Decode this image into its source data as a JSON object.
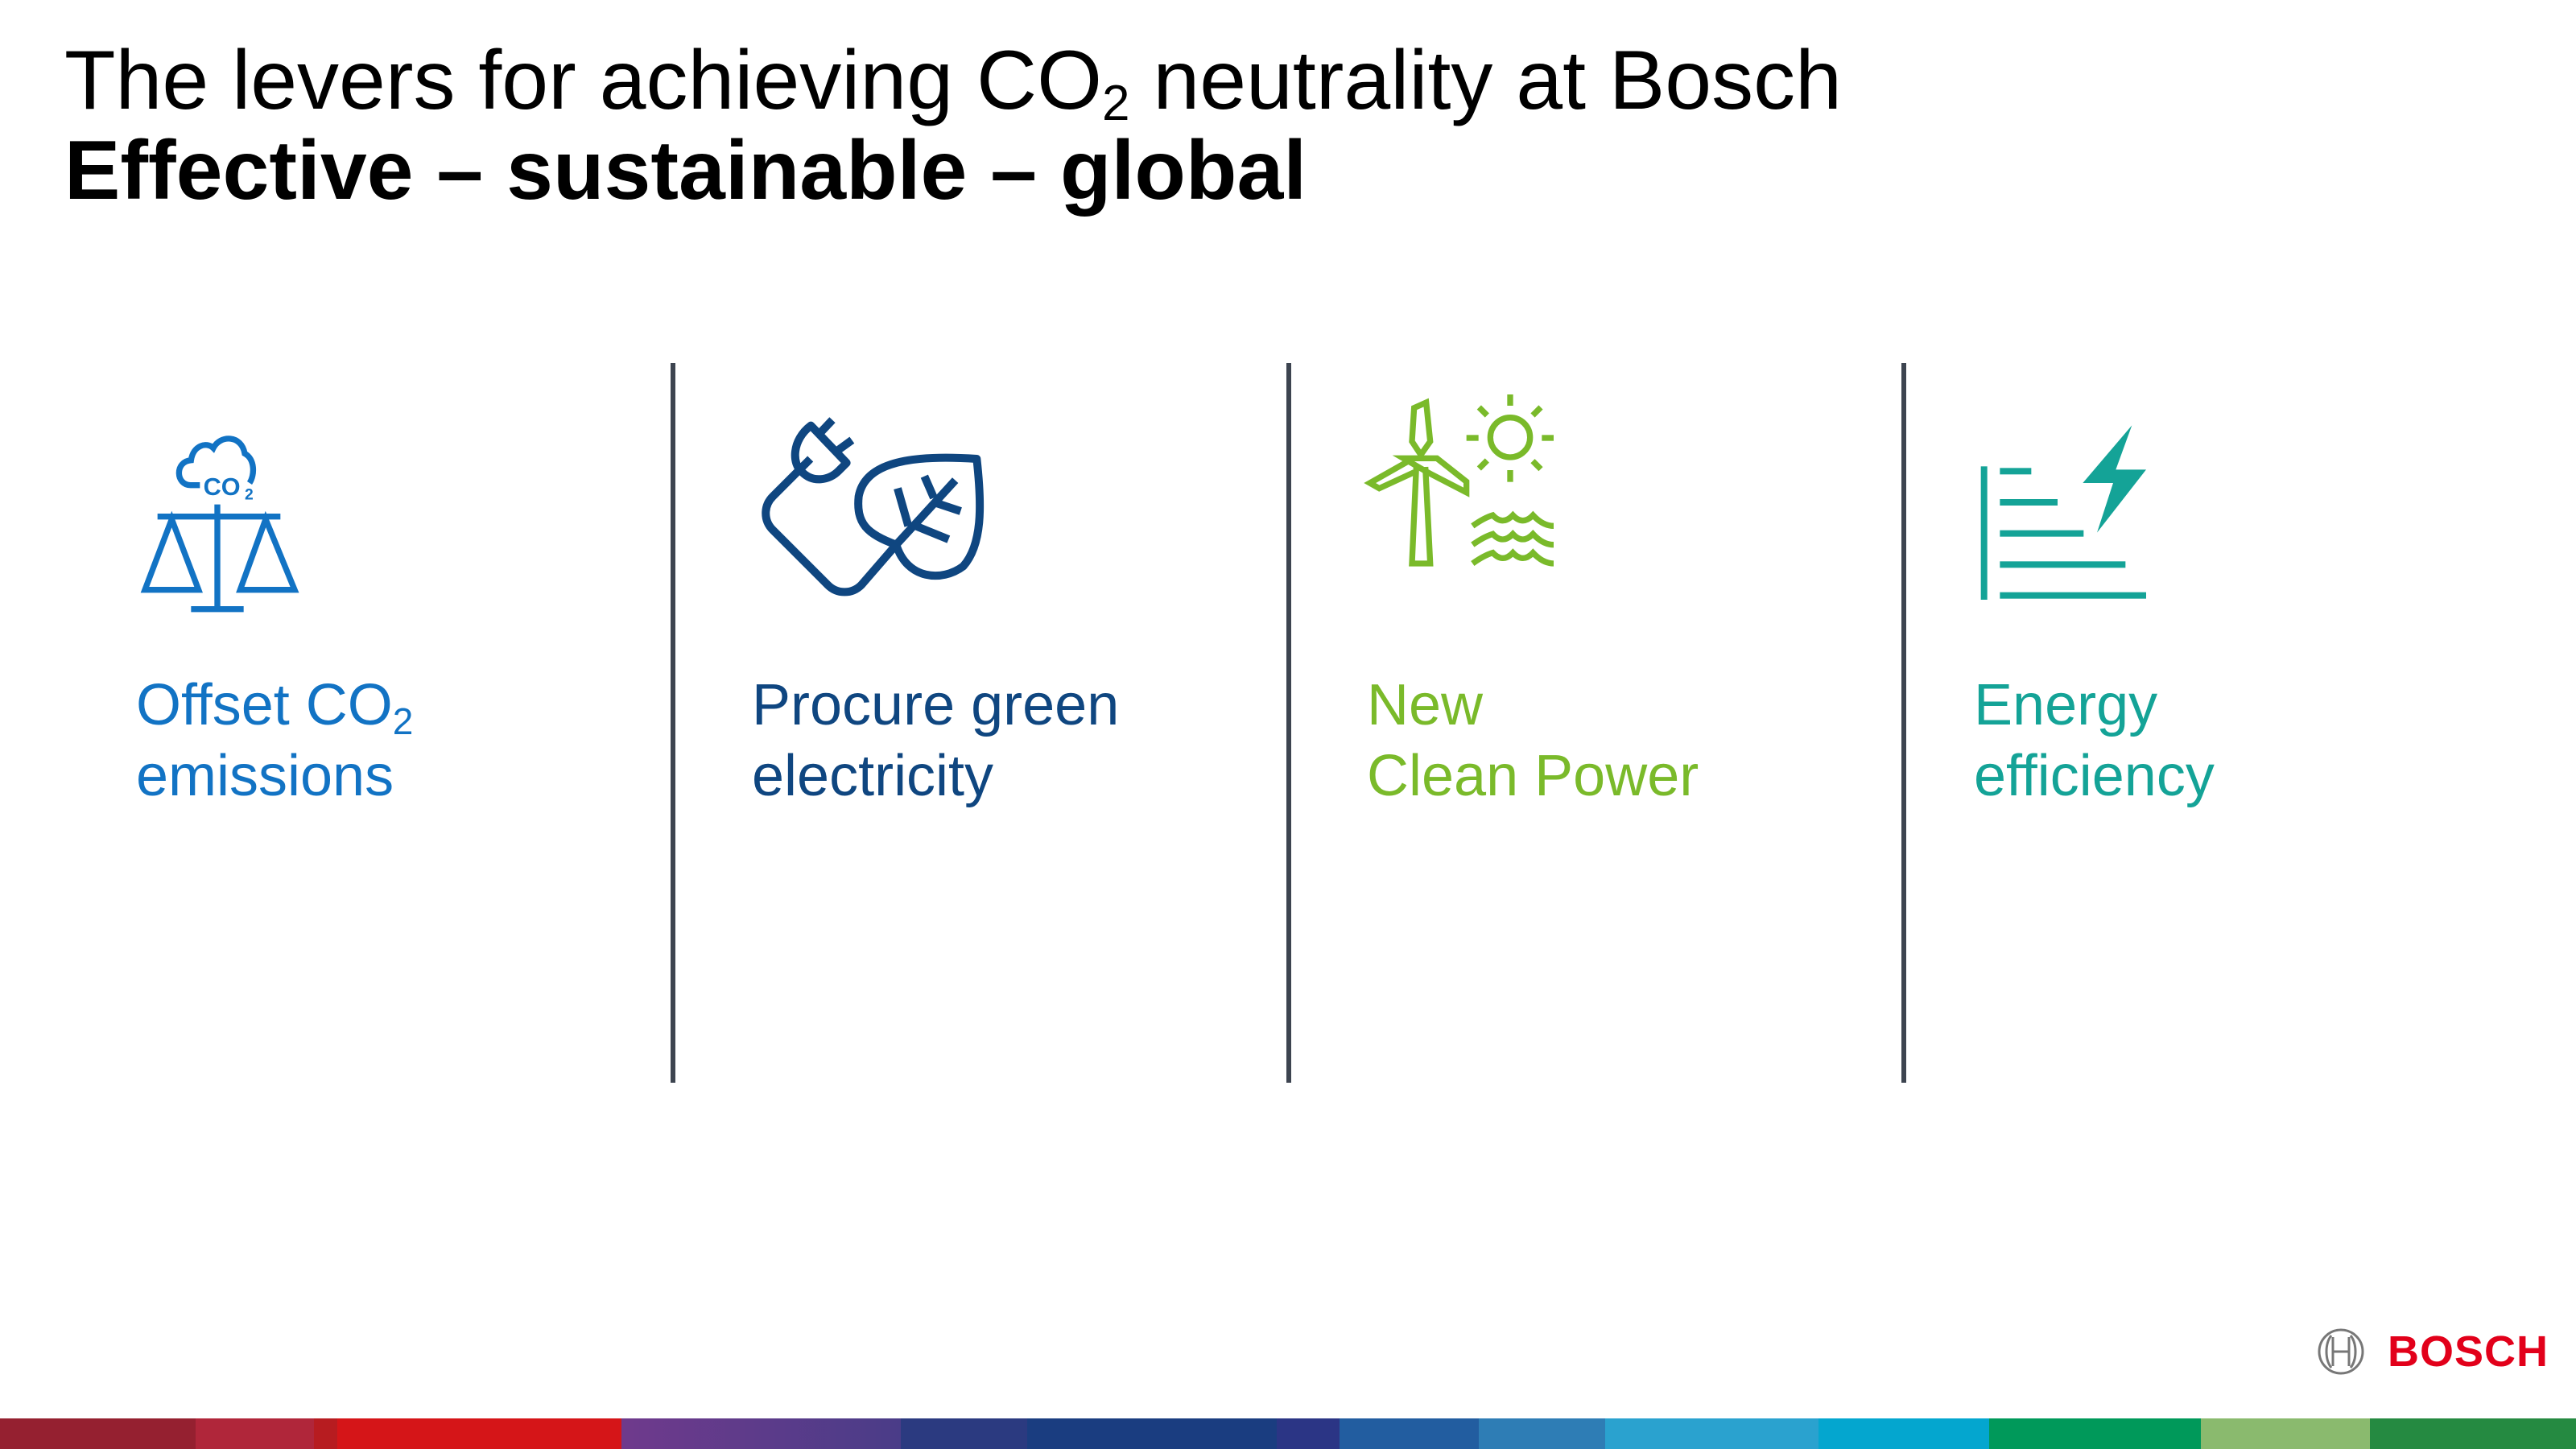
{
  "title": {
    "line1_pre": "The levers for achieving CO",
    "line1_sub": "2",
    "line1_post": " neutrality at Bosch",
    "line2": "Effective – sustainable – global"
  },
  "levers": [
    {
      "icon": "scale-co2-cloud-icon",
      "line1": "Offset CO",
      "line1_sub": "2",
      "line2": "emissions",
      "color": "#1273c4"
    },
    {
      "icon": "plug-leaf-icon",
      "line1": "Procure green",
      "line2": "electricity",
      "color": "#0f4680"
    },
    {
      "icon": "wind-sun-water-icon",
      "line1": "New",
      "line2": "Clean Power",
      "color": "#7aba2a"
    },
    {
      "icon": "efficiency-bolt-icon",
      "line1": "Energy",
      "line2": "efficiency",
      "color": "#14a397"
    }
  ],
  "logo": {
    "text": "BOSCH",
    "color": "#e2001a"
  },
  "footer_band_colors": [
    "#952030",
    "#b0263a",
    "#b71c20",
    "#d51518",
    "#6f3a8c",
    "#4a3c88",
    "#2b3a80",
    "#1a3d80",
    "#2b3585",
    "#225da0",
    "#2e7db5",
    "#2aa2cf",
    "#04a6cf",
    "#00995a",
    "#8aba6e",
    "#258a41"
  ]
}
